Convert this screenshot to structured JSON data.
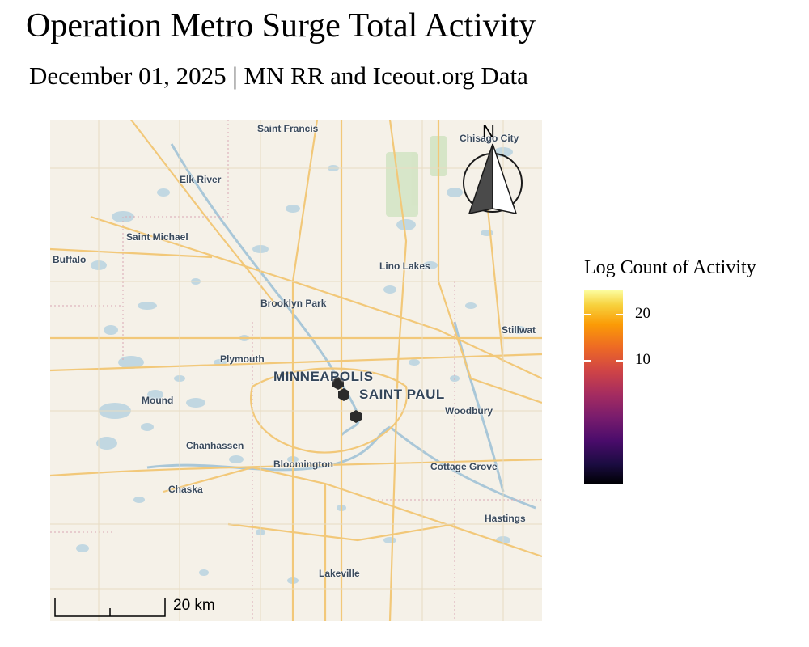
{
  "title": "Operation Metro Surge Total Activity",
  "subtitle": "December 01, 2025 | MN RR and Iceout.org Data",
  "map": {
    "places": {
      "saint_francis": "Saint Francis",
      "chisago_city": "Chisago City",
      "elk_river": "Elk River",
      "saint_michael": "Saint Michael",
      "buffalo": "Buffalo",
      "lino_lakes": "Lino Lakes",
      "brooklyn_park": "Brooklyn Park",
      "stillwater": "Stillwat",
      "plymouth": "Plymouth",
      "minneapolis": "MINNEAPOLIS",
      "saint_paul": "SAINT PAUL",
      "mound": "Mound",
      "woodbury": "Woodbury",
      "chanhassen": "Chanhassen",
      "bloomington": "Bloomington",
      "cottage_grove": "Cottage Grove",
      "chaska": "Chaska",
      "hastings": "Hastings",
      "lakeville": "Lakeville"
    },
    "hexbin_color": "#2b2b2b",
    "hexbin_count": 3
  },
  "north_arrow": {
    "label": "N"
  },
  "scale_bar": {
    "label": "20 km"
  },
  "legend": {
    "title": "Log Count of Activity",
    "ticks": [
      "20",
      "10"
    ],
    "palette": "inferno"
  }
}
